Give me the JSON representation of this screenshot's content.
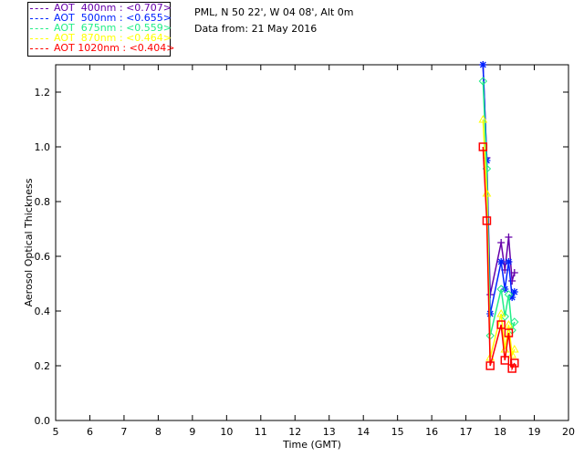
{
  "header": {
    "location": "PML, N 50 22', W 04 08', Alt 0m",
    "date": "Data from: 21 May 2016"
  },
  "chart_data": {
    "type": "line",
    "title": "",
    "xlabel": "Time (GMT)",
    "ylabel": "Aerosol Optical Thickness",
    "xlim": [
      5,
      20
    ],
    "ylim": [
      0,
      1.3
    ],
    "xticks": [
      5,
      6,
      7,
      8,
      9,
      10,
      11,
      12,
      13,
      14,
      15,
      16,
      17,
      18,
      19,
      20
    ],
    "yticks": [
      "0.0",
      "0.2",
      "0.4",
      "0.6",
      "0.8",
      "1.0",
      "1.2"
    ],
    "legend_placement": "top-left outside",
    "x": [
      17.5,
      17.61,
      17.71,
      18.03,
      18.14,
      18.25,
      18.35,
      18.42
    ],
    "series": [
      {
        "name": "AOT  400nm : <0.707>",
        "color": "#6600aa",
        "marker": "plus",
        "values": [
          1.3,
          0.96,
          0.46,
          0.65,
          0.55,
          0.67,
          0.51,
          0.54
        ]
      },
      {
        "name": "AOT  500nm : <0.655>",
        "color": "#0022ff",
        "marker": "star",
        "values": [
          1.3,
          0.95,
          0.39,
          0.58,
          0.48,
          0.58,
          0.45,
          0.47
        ]
      },
      {
        "name": "AOT  675nm : <0.559>",
        "color": "#22ee88",
        "marker": "diamond",
        "values": [
          1.24,
          0.92,
          0.31,
          0.48,
          0.38,
          0.46,
          0.33,
          0.36
        ]
      },
      {
        "name": "AOT  870nm : <0.464>",
        "color": "#ffff00",
        "marker": "triangle",
        "values": [
          1.1,
          0.83,
          0.23,
          0.39,
          0.26,
          0.35,
          0.24,
          0.26
        ]
      },
      {
        "name": "AOT 1020nm : <0.404>",
        "color": "#ff0000",
        "marker": "square",
        "values": [
          1.0,
          0.73,
          0.2,
          0.35,
          0.22,
          0.32,
          0.19,
          0.21
        ]
      }
    ]
  }
}
